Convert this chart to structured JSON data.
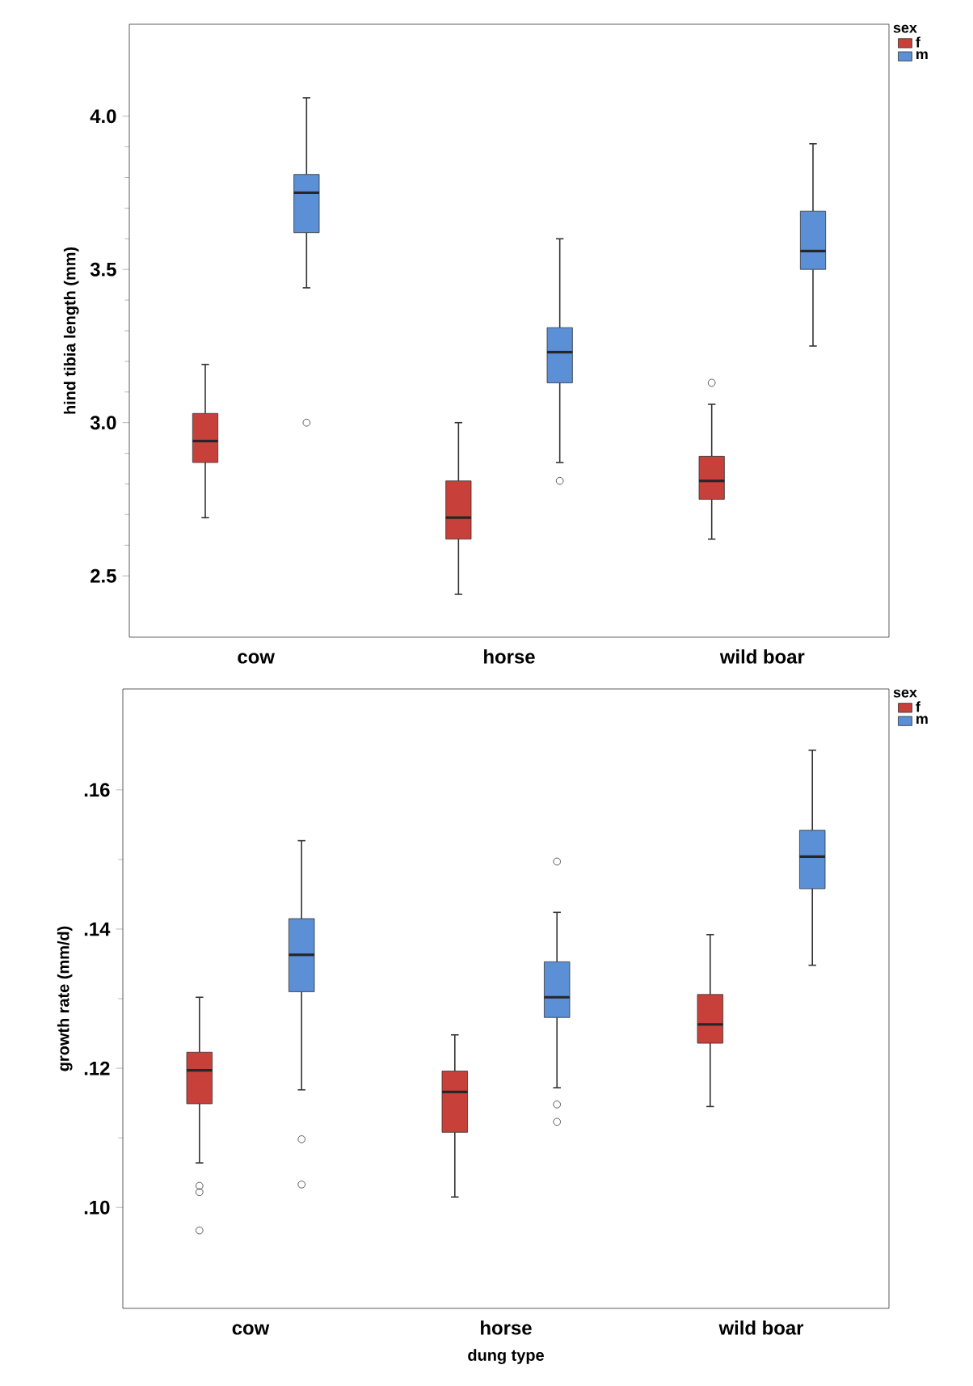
{
  "chart_data": [
    {
      "type": "box",
      "categories": [
        "cow",
        "horse",
        "wild boar"
      ],
      "ylabel": "hind tibia length (mm)",
      "ylim": [
        2.3,
        4.3
      ],
      "yticks": [
        2.5,
        {
          "value": 3.0,
          "label": "3.0"
        },
        3.5,
        {
          "value": 4.0,
          "label": "4.0"
        }
      ],
      "legend": "top right",
      "legend_title": "sex",
      "marker": "circle",
      "series": [
        {
          "name": "f",
          "color": "#c8403a",
          "boxes": [
            {
              "low": 2.69,
              "q1": 2.87,
              "median": 2.94,
              "q3": 3.03,
              "high": 3.19
            },
            {
              "low": 2.44,
              "q1": 2.62,
              "median": 2.69,
              "q3": 2.81,
              "high": 3.0
            },
            {
              "low": 2.62,
              "q1": 2.75,
              "median": 2.81,
              "q3": 2.89,
              "high": 3.06,
              "outliers": [
                3.13
              ]
            }
          ]
        },
        {
          "name": "m",
          "color": "#5b8fd6",
          "boxes": [
            {
              "low": 3.44,
              "q1": 3.62,
              "median": 3.75,
              "q3": 3.81,
              "high": 4.06,
              "outliers": [
                3.0
              ]
            },
            {
              "low": 2.87,
              "q1": 3.13,
              "median": 3.23,
              "q3": 3.31,
              "high": 3.6,
              "outliers": [
                2.81
              ]
            },
            {
              "low": 3.25,
              "q1": 3.5,
              "median": 3.56,
              "q3": 3.69,
              "high": 3.91
            }
          ]
        }
      ]
    },
    {
      "type": "box",
      "categories": [
        "cow",
        "horse",
        "wild boar"
      ],
      "xlabel": "dung type",
      "ylabel": "growth rate (mm/d)",
      "ylim": [
        0.0855,
        0.1745
      ],
      "yticks": [
        {
          "value": 0.1,
          "label": ".10"
        },
        {
          "value": 0.12,
          "label": ".12"
        },
        {
          "value": 0.14,
          "label": ".14"
        },
        {
          "value": 0.16,
          "label": ".16"
        }
      ],
      "legend": "top right",
      "legend_title": "sex",
      "marker": "circle",
      "series": [
        {
          "name": "f",
          "color": "#c8403a",
          "boxes": [
            {
              "low": 0.1064,
              "q1": 0.1149,
              "median": 0.1197,
              "q3": 0.1223,
              "high": 0.1302,
              "outliers": [
                0.1031,
                0.1022,
                0.0967
              ]
            },
            {
              "low": 0.1015,
              "q1": 0.1108,
              "median": 0.1166,
              "q3": 0.1196,
              "high": 0.1248
            },
            {
              "low": 0.1145,
              "q1": 0.1236,
              "median": 0.1263,
              "q3": 0.1306,
              "high": 0.1392
            }
          ]
        },
        {
          "name": "m",
          "color": "#5b8fd6",
          "boxes": [
            {
              "low": 0.1169,
              "q1": 0.131,
              "median": 0.1363,
              "q3": 0.1415,
              "high": 0.1527,
              "outliers": [
                0.1098,
                0.1033
              ]
            },
            {
              "low": 0.1172,
              "q1": 0.1273,
              "median": 0.1302,
              "q3": 0.1353,
              "high": 0.1424,
              "outliers": [
                0.1497,
                0.1148,
                0.1123
              ]
            },
            {
              "low": 0.1348,
              "q1": 0.1458,
              "median": 0.1504,
              "q3": 0.1542,
              "high": 0.1657
            }
          ]
        }
      ]
    }
  ]
}
